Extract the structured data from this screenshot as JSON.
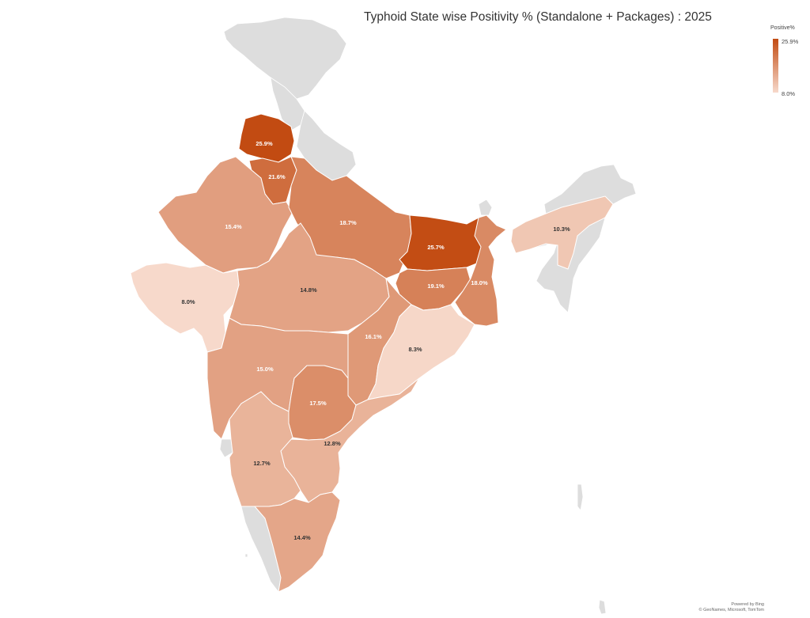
{
  "title": "Typhoid State wise Positivity % (Standalone + Packages) : 2025",
  "legend": {
    "title": "Positive%",
    "max_label": "25.9%",
    "min_label": "8.0%",
    "color_low": "#f7d9cb",
    "color_high": "#c24b12"
  },
  "no_data_color": "#dddddd",
  "attribution": {
    "line1": "Powered by Bing",
    "line2": "© GeoNames, Microsoft, TomTom"
  },
  "chart_data": {
    "type": "choropleth",
    "value_range": [
      8.0,
      25.9
    ],
    "regions": [
      {
        "id": "punjab",
        "label": "25.9%",
        "value": 25.9
      },
      {
        "id": "haryana-delhi",
        "label": "21.6%",
        "value": 21.6
      },
      {
        "id": "rajasthan",
        "label": "15.4%",
        "value": 15.4
      },
      {
        "id": "uttar-pradesh",
        "label": "18.7%",
        "value": 18.7
      },
      {
        "id": "bihar",
        "label": "25.7%",
        "value": 25.7
      },
      {
        "id": "assam",
        "label": "10.3%",
        "value": 10.3
      },
      {
        "id": "gujarat",
        "label": "8.0%",
        "value": 8.0
      },
      {
        "id": "madhya-pradesh",
        "label": "14.8%",
        "value": 14.8
      },
      {
        "id": "jharkhand",
        "label": "19.1%",
        "value": 19.1
      },
      {
        "id": "west-bengal",
        "label": "18.0%",
        "value": 18.0
      },
      {
        "id": "chhattisgarh",
        "label": "16.1%",
        "value": 16.1
      },
      {
        "id": "odisha",
        "label": "8.3%",
        "value": 8.3
      },
      {
        "id": "maharashtra",
        "label": "15.0%",
        "value": 15.0
      },
      {
        "id": "telangana",
        "label": "17.5%",
        "value": 17.5
      },
      {
        "id": "andhra-pradesh",
        "label": "12.8%",
        "value": 12.8
      },
      {
        "id": "karnataka",
        "label": "12.7%",
        "value": 12.7
      },
      {
        "id": "tamil-nadu",
        "label": "14.4%",
        "value": 14.4
      }
    ],
    "no_data_regions": [
      "jammu-kashmir",
      "himachal-uttarakhand",
      "north-east",
      "kerala",
      "goa",
      "islands"
    ]
  }
}
